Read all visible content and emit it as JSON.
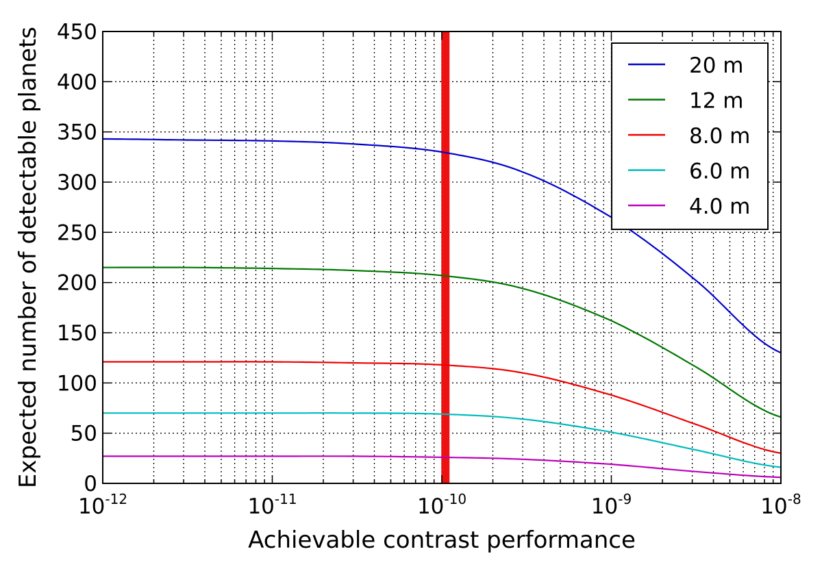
{
  "chart_data": {
    "type": "line",
    "title": "",
    "xlabel": "Achievable contrast performance",
    "ylabel": "Expected number of detectable planets",
    "xscale": "log",
    "xlim": [
      1e-12,
      1e-08
    ],
    "ylim": [
      0,
      450
    ],
    "grid": true,
    "legend_position": "top-right",
    "x_ticks": [
      {
        "value": 1e-12,
        "base": "10",
        "exp": "-12"
      },
      {
        "value": 1e-11,
        "base": "10",
        "exp": "-11"
      },
      {
        "value": 1e-10,
        "base": "10",
        "exp": "-10"
      },
      {
        "value": 1e-09,
        "base": "10",
        "exp": "-9"
      },
      {
        "value": 1e-08,
        "base": "10",
        "exp": "-8"
      }
    ],
    "y_ticks": [
      0,
      50,
      100,
      150,
      200,
      250,
      300,
      350,
      400,
      450
    ],
    "x": [
      1e-12,
      3e-12,
      1e-11,
      3e-11,
      1e-10,
      3e-10,
      1e-09,
      3e-09,
      1e-08
    ],
    "series": [
      {
        "name": "20 m",
        "color": "#0000cc",
        "values": [
          343,
          342,
          341,
          338,
          330,
          310,
          265,
          205,
          130
        ]
      },
      {
        "name": "12 m",
        "color": "#007700",
        "values": [
          215,
          215,
          214,
          212,
          207,
          194,
          162,
          118,
          66
        ]
      },
      {
        "name": "8.0 m",
        "color": "#ee0000",
        "values": [
          121,
          121,
          121,
          120,
          118,
          110,
          88,
          60,
          30
        ]
      },
      {
        "name": "6.0 m",
        "color": "#00bbbb",
        "values": [
          70,
          70,
          70,
          70,
          69,
          64,
          51,
          34,
          16
        ]
      },
      {
        "name": "4.0 m",
        "color": "#bb00bb",
        "values": [
          27,
          27,
          27,
          27,
          26,
          24,
          19,
          12,
          6
        ]
      }
    ],
    "vertical_marker": {
      "x": 1.05e-10,
      "color": "#ee1111"
    }
  }
}
